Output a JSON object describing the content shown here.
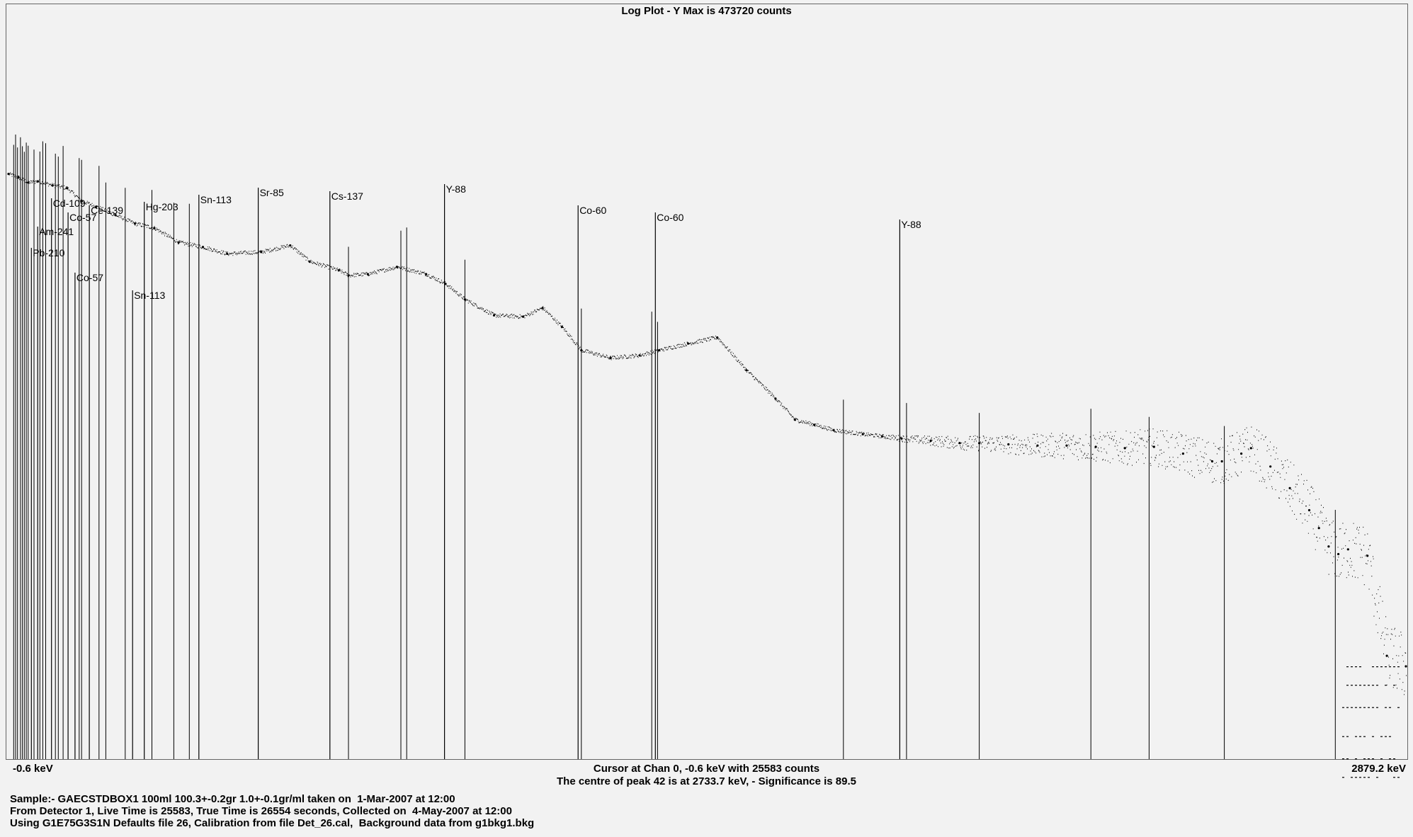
{
  "title": "Log Plot - Y Max is 473720 counts",
  "chart_data": {
    "type": "scatter",
    "title": "Log Plot - Y Max is 473720 counts",
    "y_scale": "log",
    "y_max": 473720,
    "xlim": [
      -0.6,
      2879.2
    ],
    "x_unit": "keV",
    "x_min_label": "-0.6 keV",
    "x_max_label": "2879.2 keV",
    "grid": false,
    "spectrum": {
      "x": [
        -0.6,
        20,
        40,
        60,
        90,
        120,
        150,
        180,
        220,
        260,
        300,
        350,
        400,
        450,
        520,
        580,
        620,
        680,
        700,
        740,
        800,
        860,
        900,
        940,
        1000,
        1060,
        1100,
        1140,
        1180,
        1240,
        1300,
        1340,
        1400,
        1460,
        1520,
        1580,
        1620,
        1660,
        1700,
        1760,
        1800,
        1840,
        1900,
        1960,
        2000,
        2060,
        2120,
        2180,
        2240,
        2300,
        2360,
        2420,
        2480,
        2500,
        2540,
        2560,
        2600,
        2640,
        2680,
        2700,
        2720,
        2740,
        2760,
        2800,
        2840,
        2879.2
      ],
      "y": [
        25583,
        24000,
        22000,
        22500,
        21000,
        20000,
        16000,
        14500,
        12500,
        10800,
        10000,
        7800,
        7200,
        6400,
        6600,
        7400,
        5600,
        4800,
        4400,
        4500,
        5100,
        4500,
        3800,
        2900,
        2200,
        2150,
        2500,
        1800,
        1200,
        1050,
        1100,
        1200,
        1350,
        1500,
        850,
        520,
        360,
        330,
        300,
        280,
        270,
        260,
        250,
        240,
        240,
        235,
        230,
        230,
        225,
        220,
        225,
        200,
        175,
        175,
        200,
        220,
        160,
        110,
        75,
        55,
        40,
        35,
        38,
        34,
        6,
        5
      ]
    },
    "peaks": [
      {
        "label": "Pb-210",
        "energy": 46.5
      },
      {
        "label": "Am-241",
        "energy": 59.5
      },
      {
        "label": "Cd-109",
        "energy": 88.0
      },
      {
        "label": "Co-57",
        "energy": 122.1
      },
      {
        "label": "Co-57",
        "energy": 136.5
      },
      {
        "label": "Ce-139",
        "energy": 165.9
      },
      {
        "label": "Sn-113",
        "energy": 255.1
      },
      {
        "label": "Hg-203",
        "energy": 279.2
      },
      {
        "label": "Sn-113",
        "energy": 391.7
      },
      {
        "label": "Sr-85",
        "energy": 514.0
      },
      {
        "label": "Cs-137",
        "energy": 661.7
      },
      {
        "label": "Y-88",
        "energy": 898.0
      },
      {
        "label": "Co-60",
        "energy": 1173.2
      },
      {
        "label": "Co-60",
        "energy": 1332.5
      },
      {
        "label": "Y-88",
        "energy": 1836.1
      }
    ],
    "unlabeled_peak_energies": [
      10,
      14,
      18,
      24,
      28,
      32,
      36,
      40,
      52,
      64,
      70,
      76,
      96,
      102,
      112,
      145,
      150,
      186,
      200,
      240,
      295,
      340,
      372,
      700,
      808,
      820,
      940,
      1180,
      1325,
      1337,
      1720,
      1850,
      2000,
      2230,
      2350,
      2505,
      2733.7
    ]
  },
  "cursor_info": "Cursor at Chan 0, -0.6 keV with 25583 counts",
  "peak_info": "The centre of peak 42 is at 2733.7 keV,  -  Significance is   89.5",
  "footer": {
    "line1": "Sample:- GAECSTDBOX1 100ml 100.3+-0.2gr 1.0+-0.1gr/ml taken on  1-Mar-2007 at 12:00",
    "line2": "From Detector 1, Live Time is 25583, True Time is 26554 seconds, Collected on  4-May-2007 at 12:00",
    "line3": "Using G1E75G3S1N Defaults file 26, Calibration from file Det_26.cal,  Background data from g1bkg1.bkg"
  }
}
